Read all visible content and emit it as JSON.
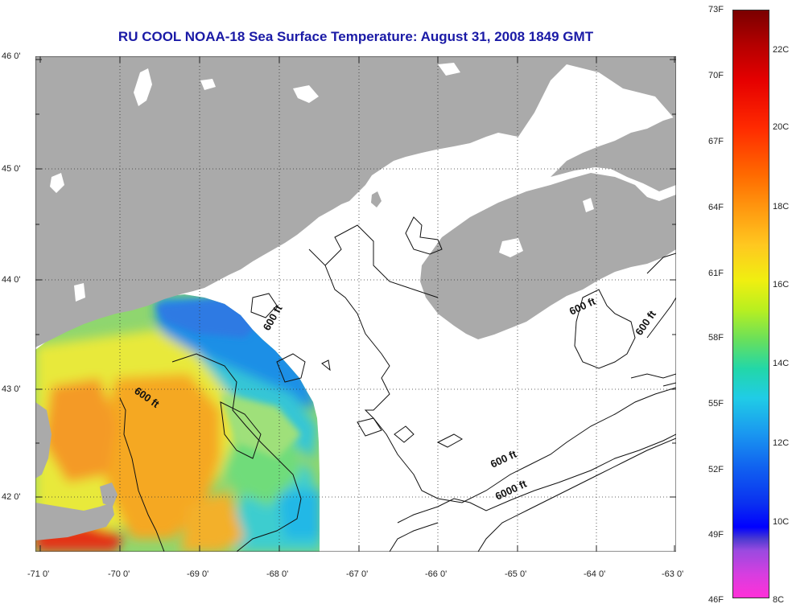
{
  "title": "RU COOL  NOAA-18  Sea Surface Temperature:  August 31, 2008 1849 GMT",
  "map": {
    "lat_labels": [
      "46 0'",
      "45 0'",
      "44 0'",
      "43 0'",
      "42 0'"
    ],
    "lon_labels": [
      "-71 0'",
      "-70 0'",
      "-69 0'",
      "-68 0'",
      "-67 0'",
      "-66 0'",
      "-65 0'",
      "-64 0'",
      "-63 0'"
    ],
    "lon_range": [
      -71,
      -63
    ],
    "lat_range": [
      41.5,
      46
    ],
    "contour_labels": [
      "600 ft",
      "600 ft",
      "600 ft",
      "600 ft",
      "600 ft",
      "6000 ft"
    ],
    "colors": {
      "land": "#aaaaaa",
      "ocean_no_data": "#ffffff",
      "contour": "#000000",
      "title": "#1a1aa6"
    }
  },
  "colorbar": {
    "fahrenheit_labels": [
      "73F",
      "70F",
      "67F",
      "64F",
      "61F",
      "58F",
      "55F",
      "52F",
      "49F",
      "46F"
    ],
    "celsius_labels": [
      "22C",
      "20C",
      "18C",
      "16C",
      "14C",
      "12C",
      "10C",
      "8C"
    ]
  }
}
